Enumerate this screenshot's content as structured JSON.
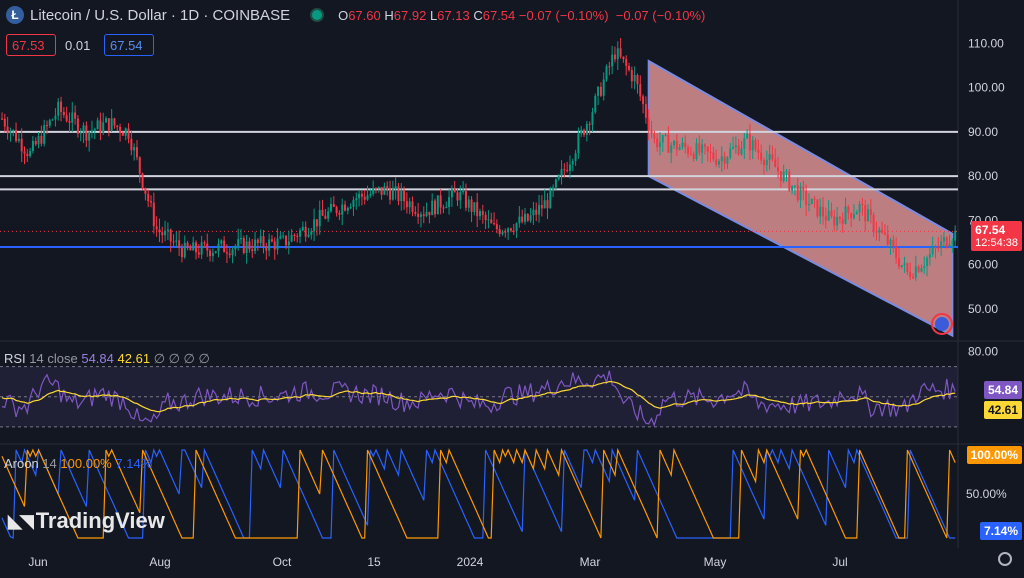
{
  "header": {
    "symbol_title": "Litecoin / U.S. Dollar · 1D · COINBASE",
    "logo_glyph": "Ł",
    "open_label": "O",
    "open": "67.60",
    "high_label": "H",
    "high": "67.92",
    "low_label": "L",
    "low": "67.13",
    "close_label": "C",
    "close": "67.54",
    "change": "−0.07 (−0.10%)",
    "change2": "−0.07 (−0.10%)"
  },
  "trade": {
    "sell": "67.53",
    "spread": "0.01",
    "buy": "67.54"
  },
  "rsi_legend": {
    "name": "RSI",
    "params": "14 close",
    "v1": "54.84",
    "v2": "42.61",
    "dots": "∅ ∅ ∅ ∅"
  },
  "aroon_legend": {
    "name": "Aroon",
    "params": "14",
    "v1": "100.00%",
    "v2": "7.14%"
  },
  "tags": {
    "price": "67.54",
    "countdown": "12:54:38",
    "rsi_up": "54.84",
    "rsi_sma": "42.61",
    "aroon_up": "100.00%",
    "aroon_down": "7.14%"
  },
  "watermark": "TradingView",
  "colors": {
    "bg": "#131722",
    "up": "#089981",
    "down": "#f23645",
    "channel": "#f7a1a1",
    "rsi": "#7e57c2",
    "rsi_sma": "#fdd835",
    "aroon_up": "#ff9800",
    "aroon_down": "#2962ff",
    "support": "#2962ff"
  },
  "chart_data": [
    {
      "type": "candlestick",
      "title": "Litecoin / U.S. Dollar · 1D · COINBASE",
      "x_ticks": [
        "Jun",
        "Aug",
        "Oct",
        "15",
        "2024",
        "Mar",
        "May",
        "Jul"
      ],
      "y_ticks": [
        50.0,
        60.0,
        70.0,
        80.0,
        90.0,
        100.0,
        110.0
      ],
      "ylim": [
        43,
        113
      ],
      "anchors": [
        [
          0,
          93
        ],
        [
          10,
          85
        ],
        [
          20,
          95
        ],
        [
          30,
          90
        ],
        [
          38,
          92
        ],
        [
          45,
          90
        ],
        [
          55,
          68
        ],
        [
          65,
          63
        ],
        [
          80,
          64
        ],
        [
          100,
          65
        ],
        [
          112,
          70
        ],
        [
          125,
          75
        ],
        [
          137,
          77
        ],
        [
          150,
          72
        ],
        [
          162,
          76
        ],
        [
          175,
          68
        ],
        [
          187,
          70
        ],
        [
          195,
          75
        ],
        [
          205,
          88
        ],
        [
          210,
          95
        ],
        [
          218,
          108
        ],
        [
          225,
          102
        ],
        [
          232,
          88
        ],
        [
          245,
          86
        ],
        [
          255,
          84
        ],
        [
          265,
          88
        ],
        [
          275,
          82
        ],
        [
          285,
          75
        ],
        [
          295,
          70
        ],
        [
          305,
          73
        ],
        [
          315,
          65
        ],
        [
          322,
          58
        ],
        [
          330,
          62
        ],
        [
          338,
          67
        ]
      ],
      "horizontal_levels": [
        90,
        80,
        77,
        64
      ],
      "channel": {
        "upper": [
          [
            230,
            106
          ],
          [
            338,
            67
          ]
        ],
        "lower": [
          [
            230,
            80
          ],
          [
            338,
            44
          ]
        ]
      }
    },
    {
      "type": "line",
      "name": "RSI 14 close",
      "y_ticks": [
        80.0
      ],
      "ylim": [
        20,
        85
      ],
      "band": [
        30,
        70
      ]
    },
    {
      "type": "line",
      "name": "Aroon 14",
      "y_ticks": [
        50.0
      ],
      "ylim": [
        0,
        100
      ]
    }
  ]
}
